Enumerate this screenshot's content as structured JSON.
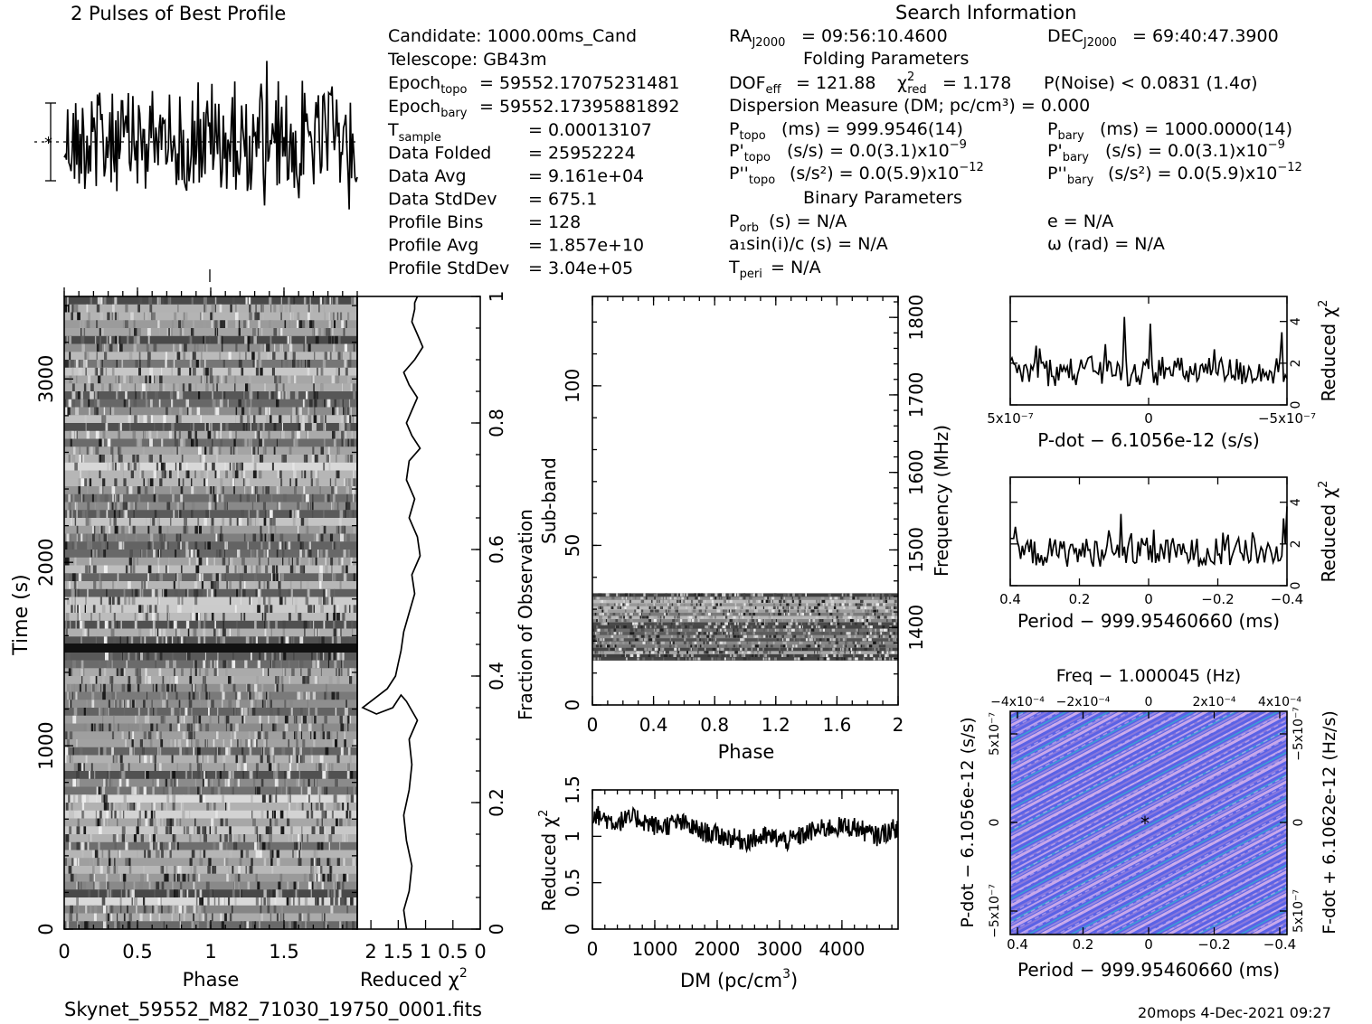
{
  "title": "2 Pulses of Best Profile",
  "search_title": "Search Information",
  "info": {
    "candidate": "Candidate:  1000.00ms_Cand",
    "telescope": "Telescope:  GB43m",
    "epoch_topo": "= 59552.17075231481",
    "epoch_bary": "= 59552.17395881892",
    "rows": [
      {
        "label": "T",
        "sub": "sample",
        "value": "=   0.00013107"
      },
      {
        "label": "Data Folded",
        "sub": "",
        "value": "=   25952224"
      },
      {
        "label": "Data Avg",
        "sub": "",
        "value": "=   9.161e+04"
      },
      {
        "label": "Data StdDev",
        "sub": "",
        "value": "=   675.1"
      },
      {
        "label": "Profile Bins",
        "sub": "",
        "value": "=   128"
      },
      {
        "label": "Profile Avg",
        "sub": "",
        "value": "=   1.857e+10"
      },
      {
        "label": "Profile StdDev",
        "sub": "",
        "value": "=   3.04e+05"
      }
    ],
    "ra": "= 09:56:10.4600",
    "dec": "= 69:40:47.3900",
    "folding_title": "Folding Parameters",
    "dof": "= 121.88",
    "chi2_red": "= 1.178",
    "p_noise": "P(Noise) < 0.0831   (1.4σ)",
    "dm_line": "Dispersion Measure (DM; pc/cm³) = 0.000",
    "p_topo": "(ms) =  999.9546(14)",
    "p_bary": "(ms) =  1000.0000(14)",
    "pd_topo": "(s/s) = 0.0(3.1)x10",
    "pd_topo_exp": "−9",
    "pd_bary": "(s/s) = 0.0(3.1)x10",
    "pd_bary_exp": "−9",
    "pdd_topo": "(s/s²) = 0.0(5.9)x10",
    "pdd_topo_exp": "−12",
    "pdd_bary": "(s/s²) = 0.0(5.9)x10",
    "pdd_bary_exp": "−12",
    "binary_title": "Binary Parameters",
    "porb": "(s) = N/A",
    "asini": "a₁sin(i)/c (s) = N/A",
    "tperi": "= N/A",
    "ecc": "e = N/A",
    "omega": "ω (rad) = N/A"
  },
  "footer": {
    "filename": "Skynet_59552_M82_71030_19750_0001.fits",
    "stamp": "20mops   4-Dec-2021 09:27"
  },
  "chart_data": [
    {
      "type": "line",
      "name": "profile",
      "title": "2 Pulses of Best Profile",
      "xlim": [
        0,
        2
      ]
    },
    {
      "type": "heatmap",
      "name": "time-phase",
      "xlabel": "Phase",
      "ylabel": "Time (s)",
      "xticks": [
        "0",
        "0.5",
        "1",
        "1.5"
      ],
      "yticks": [
        "0",
        "1000",
        "2000",
        "3000"
      ],
      "xlim": [
        0,
        2
      ],
      "ylim": [
        0,
        3450
      ]
    },
    {
      "type": "line",
      "name": "time-chi2",
      "xlabel": "Reduced χ²",
      "xticks": [
        "2",
        "1.5",
        "1",
        "0.5",
        "0"
      ],
      "ylabel": "Fraction of Observation",
      "yticks": [
        "0",
        "0.2",
        "0.4",
        "0.6",
        "0.8",
        "1"
      ],
      "x": [
        1.35,
        1.4,
        1.3,
        1.25,
        1.35,
        1.4,
        1.3,
        1.25,
        1.3,
        1.15,
        1.35,
        1.45,
        1.6,
        1.9,
        2.15,
        1.7,
        1.55,
        1.5,
        1.45,
        1.4,
        1.3,
        1.2,
        1.25,
        1.1,
        1.15,
        1.3,
        1.2,
        1.35,
        1.3,
        1.1,
        1.25,
        1.35,
        1.25,
        1.15,
        1.3,
        1.4,
        1.2,
        1.05,
        1.15,
        1.25,
        1.2,
        1.2,
        1.15
      ],
      "y": [
        0.0,
        0.03,
        0.06,
        0.1,
        0.14,
        0.18,
        0.22,
        0.26,
        0.3,
        0.33,
        0.36,
        0.37,
        0.35,
        0.34,
        0.35,
        0.38,
        0.4,
        0.42,
        0.44,
        0.47,
        0.5,
        0.53,
        0.56,
        0.59,
        0.62,
        0.65,
        0.68,
        0.71,
        0.74,
        0.76,
        0.78,
        0.8,
        0.82,
        0.84,
        0.86,
        0.88,
        0.9,
        0.92,
        0.94,
        0.96,
        0.98,
        0.99,
        1.0
      ]
    },
    {
      "type": "heatmap",
      "name": "subband-phase",
      "xlabel": "Phase",
      "ylabel": "Sub-band",
      "xticks": [
        "0",
        "0.4",
        "0.8",
        "1.2",
        "1.6",
        "2"
      ],
      "yticks": [
        "0",
        "50",
        "100"
      ],
      "ylim": [
        0,
        128
      ],
      "filled_subbands": [
        14,
        35
      ],
      "y2label": "Frequency (MHz)",
      "y2ticks": [
        "1400",
        "1500",
        "1600",
        "1700",
        "1800"
      ]
    },
    {
      "type": "line",
      "name": "dm-chi2",
      "xlabel": "DM (pc/cm³)",
      "ylabel": "Reduced χ²",
      "xticks": [
        "0",
        "1000",
        "2000",
        "3000",
        "4000"
      ],
      "yticks": [
        "0",
        "0.5",
        "1",
        "1.5"
      ],
      "xlim": [
        0,
        4900
      ],
      "ylim": [
        0,
        1.5
      ],
      "x": [
        0,
        350,
        700,
        1050,
        1400,
        1750,
        2100,
        2450,
        2800,
        3150,
        3500,
        3850,
        4200,
        4550,
        4900
      ],
      "y": [
        1.25,
        1.15,
        1.2,
        1.1,
        1.15,
        1.05,
        1.0,
        0.95,
        1.0,
        0.95,
        1.05,
        1.1,
        1.1,
        1.0,
        1.1
      ]
    },
    {
      "type": "line",
      "name": "pdot-chi2",
      "xlabel": "P-dot − 6.1056e-12 (s/s)",
      "ylabel": "Reduced χ²",
      "xticks": [
        "5x10⁻⁷",
        "0",
        "−5x10⁻⁷"
      ],
      "yticks": [
        "0",
        "2",
        "4"
      ]
    },
    {
      "type": "line",
      "name": "period-chi2",
      "xlabel": "Period − 999.95460660 (ms)",
      "ylabel": "Reduced χ²",
      "xticks": [
        "0.4",
        "0.2",
        "0",
        "−0.2",
        "−0.4"
      ],
      "yticks": [
        "0",
        "2",
        "4"
      ]
    },
    {
      "type": "heatmap",
      "name": "period-pdot",
      "title": "Freq − 1.000045 (Hz)",
      "top_ticks": [
        "−4x10⁻⁴",
        "−2x10⁻⁴",
        "0",
        "2x10⁻⁴",
        "4x10⁻⁴"
      ],
      "xlabel": "Period − 999.95460660 (ms)",
      "xticks": [
        "0.4",
        "0.2",
        "0",
        "−0.2",
        "−0.4"
      ],
      "ylabel": "P-dot − 6.1056e-12 (s/s)",
      "yticks": [
        "5x10⁻⁷",
        "0",
        "−5x10⁻⁷"
      ],
      "y2label": "F-dot + 6.1062e-12 (Hz/s)",
      "y2ticks": [
        "−5x10⁻⁷",
        "0",
        "5x10⁻⁷"
      ],
      "colors": [
        "#5560e8",
        "#8a7ae0",
        "#c9a6e8",
        "#3aa8d0"
      ]
    }
  ]
}
